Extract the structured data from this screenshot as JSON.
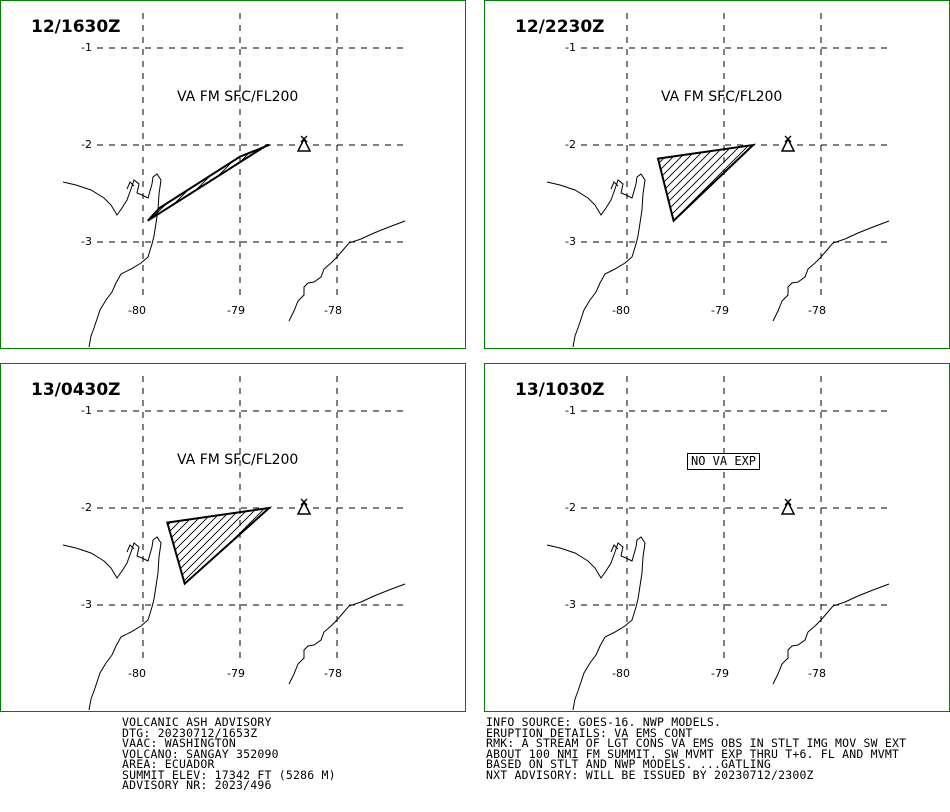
{
  "panels": [
    {
      "title": "12/1630Z",
      "label": "VA FM SFC/FL200",
      "label_type": "ash",
      "polygon": [
        [
          -79.83,
          -2.65
        ],
        [
          -79.95,
          -2.78
        ],
        [
          -78.72,
          -2.0
        ],
        [
          -78.7,
          -2.0
        ],
        [
          -79.0,
          -2.12
        ]
      ]
    },
    {
      "title": "12/2230Z",
      "label": "VA FM SFC/FL200",
      "label_type": "ash",
      "polygon": [
        [
          -79.68,
          -2.14
        ],
        [
          -79.52,
          -2.78
        ],
        [
          -78.7,
          -2.0
        ]
      ]
    },
    {
      "title": "13/0430Z",
      "label": "VA FM SFC/FL200",
      "label_type": "ash",
      "polygon": [
        [
          -79.75,
          -2.15
        ],
        [
          -79.57,
          -2.78
        ],
        [
          -78.7,
          -2.0
        ]
      ]
    },
    {
      "title": "13/1030Z",
      "label": "NO VA EXP",
      "label_type": "box",
      "polygon": []
    }
  ],
  "axes": {
    "lat_labels": [
      "-1",
      "-2",
      "-3"
    ],
    "lon_labels": [
      "-80",
      "-79",
      "-78"
    ]
  },
  "volcano": {
    "name": "SANGAY",
    "lon": -78.34,
    "lat": -2.0
  },
  "advisory_left": [
    "VOLCANIC ASH ADVISORY",
    "DTG: 20230712/1653Z",
    "VAAC: WASHINGTON",
    "VOLCANO: SANGAY 352090",
    "AREA: ECUADOR",
    "SUMMIT ELEV: 17342 FT (5286 M)",
    "ADVISORY NR: 2023/496"
  ],
  "advisory_right": [
    "INFO SOURCE: GOES-16. NWP MODELS.",
    "ERUPTION DETAILS: VA EMS CONT",
    "RMK: A STREAM OF LGT CONS VA EMS OBS IN STLT IMG MOV SW EXT",
    "ABOUT 100 NMI FM SUMMIT. SW MVMT EXP THRU T+6. FL AND MVMT",
    "BASED ON STLT AND NWP MODELS. ...GATLING",
    "NXT ADVISORY: WILL BE ISSUED BY 20230712/2300Z"
  ],
  "colors": {
    "border": "#008000",
    "ink": "#000000",
    "background": "#ffffff"
  }
}
